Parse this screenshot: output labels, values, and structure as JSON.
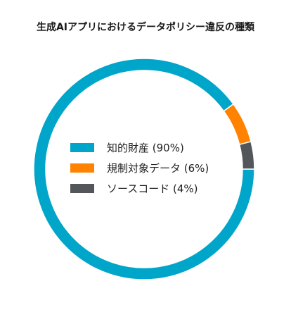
{
  "chart_data": {
    "type": "pie",
    "variant": "donut",
    "title": "生成AIアプリにおけるデータポリシー違反の種類",
    "legend_position": "center",
    "slices": [
      {
        "label": "知的財産 (90%)",
        "value": 90,
        "color": "#00A6C9"
      },
      {
        "label": "規制対象データ (6%)",
        "value": 6,
        "color": "#FF8200"
      },
      {
        "label": "ソースコード (4%)",
        "value": 4,
        "color": "#53565A"
      }
    ]
  }
}
